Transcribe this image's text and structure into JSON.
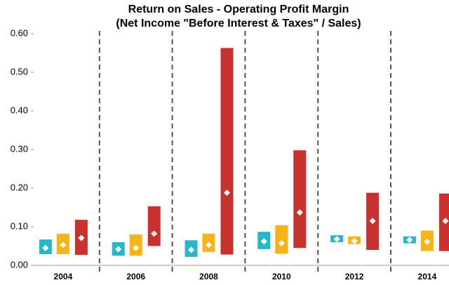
{
  "chart_data": {
    "type": "range-bar",
    "title": "Return on Sales - Operating Profit Margin",
    "subtitle": "(Net Income \"Before Interest & Taxes\" / Sales)",
    "categories": [
      "2004",
      "2006",
      "2008",
      "2010",
      "2012",
      "2014"
    ],
    "series": [
      {
        "color": "#2bb5c8",
        "low": [
          0.029,
          0.025,
          0.022,
          0.042,
          0.06,
          0.057
        ],
        "high": [
          0.067,
          0.06,
          0.065,
          0.087,
          0.078,
          0.075
        ],
        "values": [
          0.045,
          0.042,
          0.04,
          0.062,
          0.068,
          0.066
        ]
      },
      {
        "color": "#f7b418",
        "low": [
          0.029,
          0.025,
          0.035,
          0.03,
          0.055,
          0.037
        ],
        "high": [
          0.082,
          0.08,
          0.082,
          0.104,
          0.075,
          0.09
        ],
        "values": [
          0.053,
          0.045,
          0.053,
          0.057,
          0.063,
          0.061
        ]
      },
      {
        "color": "#c8322e",
        "low": [
          0.027,
          0.05,
          0.028,
          0.045,
          0.04,
          0.037
        ],
        "high": [
          0.118,
          0.153,
          0.563,
          0.298,
          0.188,
          0.186
        ],
        "values": [
          0.071,
          0.082,
          0.188,
          0.137,
          0.115,
          0.115
        ]
      }
    ],
    "marker_color": "#ffffff",
    "ylim": [
      0,
      0.6
    ],
    "yticks": [
      {
        "value": 0,
        "label": "0.00"
      },
      {
        "value": 0.1,
        "label": "0.10"
      },
      {
        "value": 0.2,
        "label": "0.20"
      },
      {
        "value": 0.3,
        "label": "0.30"
      },
      {
        "value": 0.4,
        "label": "0.40"
      },
      {
        "value": 0.5,
        "label": "0.50"
      },
      {
        "value": 0.6,
        "label": "0.60"
      }
    ],
    "separators": true
  }
}
